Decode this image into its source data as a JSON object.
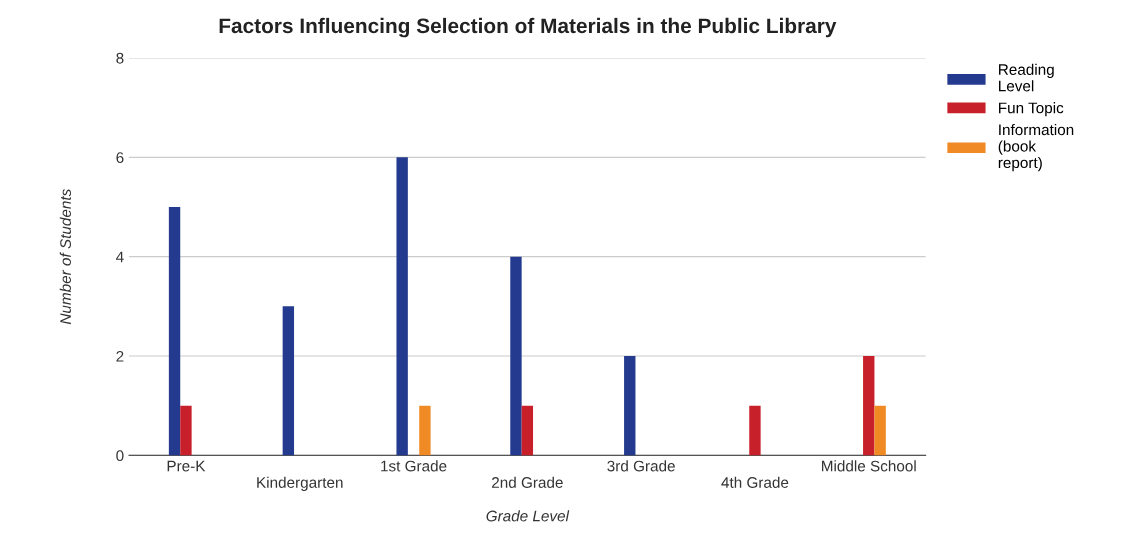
{
  "chart_data": {
    "type": "bar",
    "title": "Factors Influencing Selection of Materials in the Public Library",
    "xlabel": "Grade Level",
    "ylabel": "Number of Students",
    "categories": [
      "Pre-K",
      "Kindergarten",
      "1st Grade",
      "2nd Grade",
      "3rd Grade",
      "4th Grade",
      "Middle School"
    ],
    "series": [
      {
        "name": "Reading Level",
        "color": "#233a8f",
        "values": [
          5,
          3,
          6,
          4,
          2,
          0,
          0
        ]
      },
      {
        "name": "Fun Topic",
        "color": "#c8202a",
        "values": [
          1,
          0,
          0,
          1,
          0,
          1,
          2
        ]
      },
      {
        "name": "Information (book report)",
        "color": "#f08a24",
        "values": [
          0,
          0,
          1,
          0,
          0,
          0,
          1
        ]
      }
    ],
    "ylim": [
      0,
      8
    ],
    "yticks": [
      0,
      2,
      4,
      6,
      8
    ],
    "grid": "y",
    "legend": "top right"
  }
}
